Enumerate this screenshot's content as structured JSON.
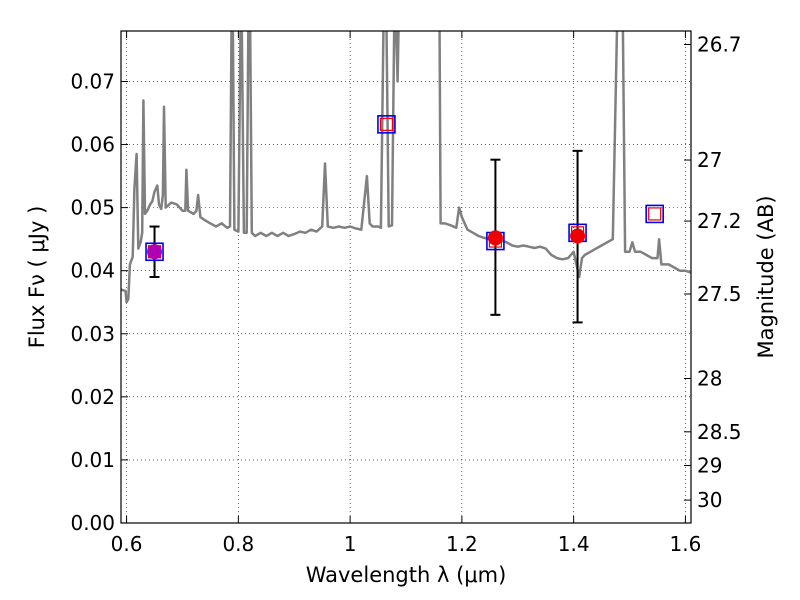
{
  "chart_data": {
    "type": "scatter",
    "xlabel": "Wavelength  λ (μm)",
    "ylabel_left": "Flux  Fν  ( μJy )",
    "ylabel_right": "Magnitude (AB)",
    "xlim": [
      0.59,
      1.61
    ],
    "ylim": [
      0.0,
      0.078
    ],
    "grid": true,
    "x_ticks": [
      {
        "value": 0.6,
        "label": "0.6"
      },
      {
        "value": 0.8,
        "label": "0.8"
      },
      {
        "value": 1.0,
        "label": "1"
      },
      {
        "value": 1.2,
        "label": "1.2"
      },
      {
        "value": 1.4,
        "label": "1.4"
      },
      {
        "value": 1.6,
        "label": "1.6"
      }
    ],
    "y_ticks": [
      {
        "value": 0.0,
        "label": "0.00"
      },
      {
        "value": 0.01,
        "label": "0.01"
      },
      {
        "value": 0.02,
        "label": "0.02"
      },
      {
        "value": 0.03,
        "label": "0.03"
      },
      {
        "value": 0.04,
        "label": "0.04"
      },
      {
        "value": 0.05,
        "label": "0.05"
      },
      {
        "value": 0.06,
        "label": "0.06"
      },
      {
        "value": 0.07,
        "label": "0.07"
      }
    ],
    "mag_ticks": [
      {
        "mag": 26.7,
        "label": "26.7"
      },
      {
        "mag": 27.0,
        "label": "27"
      },
      {
        "mag": 27.2,
        "label": "27.2"
      },
      {
        "mag": 27.5,
        "label": "27.5"
      },
      {
        "mag": 28.0,
        "label": "28"
      },
      {
        "mag": 28.5,
        "label": "28.5"
      },
      {
        "mag": 29.0,
        "label": "29"
      },
      {
        "mag": 30.0,
        "label": "30"
      }
    ],
    "colors": {
      "spectrum": "#808080",
      "observed": "#ee0000",
      "observed_blended": "#b000b0",
      "model_outer": "#0000ee",
      "model_inner": "#ee0000",
      "errorbar": "#000000"
    },
    "spectrum": [
      [
        0.59,
        0.037
      ],
      [
        0.598,
        0.0368
      ],
      [
        0.6,
        0.035
      ],
      [
        0.603,
        0.0355
      ],
      [
        0.606,
        0.041
      ],
      [
        0.611,
        0.0422
      ],
      [
        0.614,
        0.053
      ],
      [
        0.618,
        0.0585
      ],
      [
        0.621,
        0.0435
      ],
      [
        0.625,
        0.0445
      ],
      [
        0.628,
        0.046
      ],
      [
        0.63,
        0.067
      ],
      [
        0.633,
        0.049
      ],
      [
        0.637,
        0.0495
      ],
      [
        0.642,
        0.0505
      ],
      [
        0.646,
        0.051
      ],
      [
        0.65,
        0.0525
      ],
      [
        0.655,
        0.0535
      ],
      [
        0.658,
        0.0505
      ],
      [
        0.662,
        0.0498
      ],
      [
        0.665,
        0.052
      ],
      [
        0.667,
        0.066
      ],
      [
        0.67,
        0.05
      ],
      [
        0.68,
        0.0508
      ],
      [
        0.69,
        0.0505
      ],
      [
        0.7,
        0.0495
      ],
      [
        0.705,
        0.0495
      ],
      [
        0.707,
        0.056
      ],
      [
        0.71,
        0.0495
      ],
      [
        0.72,
        0.049
      ],
      [
        0.725,
        0.0495
      ],
      [
        0.728,
        0.052
      ],
      [
        0.732,
        0.0485
      ],
      [
        0.74,
        0.048
      ],
      [
        0.75,
        0.0475
      ],
      [
        0.76,
        0.047
      ],
      [
        0.77,
        0.0475
      ],
      [
        0.78,
        0.0468
      ],
      [
        0.785,
        0.047
      ],
      [
        0.788,
        0.08
      ],
      [
        0.79,
        0.08
      ],
      [
        0.793,
        0.0465
      ],
      [
        0.8,
        0.0462
      ],
      [
        0.804,
        0.08
      ],
      [
        0.806,
        0.08
      ],
      [
        0.81,
        0.046
      ],
      [
        0.815,
        0.046
      ],
      [
        0.818,
        0.08
      ],
      [
        0.821,
        0.08
      ],
      [
        0.824,
        0.046
      ],
      [
        0.83,
        0.0455
      ],
      [
        0.84,
        0.046
      ],
      [
        0.85,
        0.0455
      ],
      [
        0.86,
        0.046
      ],
      [
        0.87,
        0.0455
      ],
      [
        0.88,
        0.046
      ],
      [
        0.89,
        0.0455
      ],
      [
        0.9,
        0.0458
      ],
      [
        0.91,
        0.0462
      ],
      [
        0.92,
        0.046
      ],
      [
        0.93,
        0.0465
      ],
      [
        0.94,
        0.0462
      ],
      [
        0.95,
        0.047
      ],
      [
        0.955,
        0.057
      ],
      [
        0.96,
        0.047
      ],
      [
        0.97,
        0.0468
      ],
      [
        0.98,
        0.047
      ],
      [
        0.99,
        0.0468
      ],
      [
        1.0,
        0.047
      ],
      [
        1.01,
        0.0467
      ],
      [
        1.02,
        0.0465
      ],
      [
        1.03,
        0.055
      ],
      [
        1.035,
        0.0475
      ],
      [
        1.04,
        0.047
      ],
      [
        1.05,
        0.047
      ],
      [
        1.055,
        0.0468
      ],
      [
        1.06,
        0.08
      ],
      [
        1.065,
        0.08
      ],
      [
        1.069,
        0.047
      ],
      [
        1.075,
        0.0472
      ],
      [
        1.079,
        0.08
      ],
      [
        1.082,
        0.08
      ],
      [
        1.085,
        0.07
      ],
      [
        1.087,
        0.08
      ],
      [
        1.09,
        0.08
      ],
      [
        1.1,
        0.08
      ],
      [
        1.12,
        0.08
      ],
      [
        1.14,
        0.08
      ],
      [
        1.15,
        0.08
      ],
      [
        1.16,
        0.08
      ],
      [
        1.162,
        0.0475
      ],
      [
        1.17,
        0.0475
      ],
      [
        1.18,
        0.0472
      ],
      [
        1.19,
        0.0468
      ],
      [
        1.195,
        0.05
      ],
      [
        1.2,
        0.0485
      ],
      [
        1.21,
        0.0465
      ],
      [
        1.22,
        0.046
      ],
      [
        1.23,
        0.0455
      ],
      [
        1.24,
        0.0452
      ],
      [
        1.25,
        0.045
      ],
      [
        1.26,
        0.045
      ],
      [
        1.27,
        0.0448
      ],
      [
        1.28,
        0.0445
      ],
      [
        1.29,
        0.044
      ],
      [
        1.3,
        0.0438
      ],
      [
        1.31,
        0.044
      ],
      [
        1.32,
        0.0438
      ],
      [
        1.33,
        0.0436
      ],
      [
        1.34,
        0.0438
      ],
      [
        1.35,
        0.0435
      ],
      [
        1.355,
        0.043
      ],
      [
        1.36,
        0.0425
      ],
      [
        1.37,
        0.042
      ],
      [
        1.38,
        0.0418
      ],
      [
        1.39,
        0.042
      ],
      [
        1.4,
        0.043
      ],
      [
        1.405,
        0.041
      ],
      [
        1.41,
        0.039
      ],
      [
        1.415,
        0.042
      ],
      [
        1.42,
        0.0425
      ],
      [
        1.43,
        0.043
      ],
      [
        1.44,
        0.0435
      ],
      [
        1.45,
        0.044
      ],
      [
        1.46,
        0.0445
      ],
      [
        1.47,
        0.045
      ],
      [
        1.478,
        0.08
      ],
      [
        1.488,
        0.08
      ],
      [
        1.492,
        0.043
      ],
      [
        1.5,
        0.043
      ],
      [
        1.505,
        0.0445
      ],
      [
        1.51,
        0.043
      ],
      [
        1.52,
        0.043
      ],
      [
        1.53,
        0.0425
      ],
      [
        1.54,
        0.042
      ],
      [
        1.55,
        0.042
      ],
      [
        1.553,
        0.045
      ],
      [
        1.557,
        0.041
      ],
      [
        1.57,
        0.041
      ],
      [
        1.58,
        0.0405
      ],
      [
        1.59,
        0.04
      ],
      [
        1.6,
        0.04
      ],
      [
        1.61,
        0.0397
      ]
    ],
    "observed_points": [
      {
        "x": 0.65,
        "y": 0.043,
        "yerr_low": 0.039,
        "yerr_high": 0.047,
        "blended": true
      },
      {
        "x": 1.26,
        "y": 0.0452,
        "yerr_low": 0.033,
        "yerr_high": 0.0576,
        "blended": false
      },
      {
        "x": 1.407,
        "y": 0.0455,
        "yerr_low": 0.0318,
        "yerr_high": 0.059,
        "blended": false
      }
    ],
    "model_points": [
      {
        "x": 0.65,
        "y": 0.043
      },
      {
        "x": 1.065,
        "y": 0.0632
      },
      {
        "x": 1.26,
        "y": 0.0447
      },
      {
        "x": 1.407,
        "y": 0.046
      },
      {
        "x": 1.545,
        "y": 0.049
      }
    ]
  }
}
